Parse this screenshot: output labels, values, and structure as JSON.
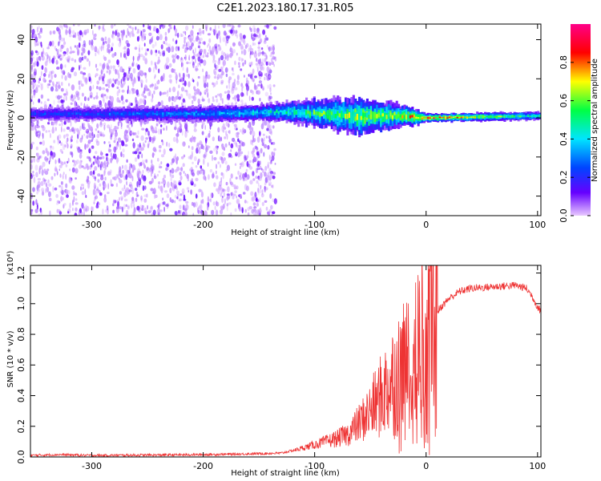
{
  "title": "C2E1.2023.180.17.31.R05",
  "chart_data": [
    {
      "type": "heatmap",
      "xlabel": "Height of straight line (km)",
      "ylabel": "Frequency (Hz)",
      "xlim": [
        -355,
        103
      ],
      "ylim": [
        -50,
        48
      ],
      "x_ticks": [
        -300,
        -200,
        -100,
        0,
        100
      ],
      "y_ticks": [
        -40,
        -20,
        0,
        20,
        40
      ],
      "colorbar": {
        "label": "Normalized spectral amplitude",
        "range": [
          0,
          1
        ],
        "ticks": [
          "0.0",
          "0.2",
          "0.4",
          "0.6",
          "0.8"
        ],
        "colors": [
          "#e8c9ff",
          "#6600ff",
          "#0044ff",
          "#00e5ff",
          "#00ff44",
          "#ffff00",
          "#ff0000",
          "#ff0088"
        ]
      },
      "band": {
        "center_freq": [
          [
            -355,
            2
          ],
          [
            -300,
            2
          ],
          [
            -200,
            2
          ],
          [
            -120,
            3
          ],
          [
            -60,
            1
          ],
          [
            -20,
            1
          ],
          [
            0,
            0
          ],
          [
            100,
            1
          ]
        ],
        "half_width": [
          [
            -355,
            3
          ],
          [
            -140,
            4
          ],
          [
            -60,
            9
          ],
          [
            -10,
            4
          ],
          [
            0,
            2
          ],
          [
            100,
            2
          ]
        ],
        "peak_amplitude": [
          [
            -355,
            0.28
          ],
          [
            -200,
            0.38
          ],
          [
            -120,
            0.55
          ],
          [
            -60,
            0.7
          ],
          [
            -20,
            0.75
          ],
          [
            0,
            0.9
          ],
          [
            100,
            0.55
          ]
        ]
      },
      "noise_region": {
        "x_range": [
          -355,
          -135
        ],
        "freq_range": [
          -50,
          48
        ]
      }
    },
    {
      "type": "line",
      "xlabel": "Height of straight line (km)",
      "ylabel": "SNR (10 * v/v)",
      "y_multiplier": "(x10⁴)",
      "xlim": [
        -355,
        103
      ],
      "ylim": [
        0,
        1.25
      ],
      "x_ticks": [
        -300,
        -200,
        -100,
        0,
        100
      ],
      "y_ticks": [
        "0.0",
        "0.2",
        "0.4",
        "0.6",
        "0.8",
        "1.0",
        "1.2"
      ],
      "series": [
        {
          "color": "#ee3333",
          "points": [
            [
              -355,
              0.01
            ],
            [
              -330,
              0.015
            ],
            [
              -300,
              0.01
            ],
            [
              -250,
              0.012
            ],
            [
              -200,
              0.015
            ],
            [
              -160,
              0.02
            ],
            [
              -130,
              0.025
            ],
            [
              -115,
              0.05
            ],
            [
              -100,
              0.08
            ],
            [
              -90,
              0.1
            ],
            [
              -80,
              0.12
            ],
            [
              -70,
              0.15
            ],
            [
              -60,
              0.22
            ],
            [
              -50,
              0.3
            ],
            [
              -40,
              0.4
            ],
            [
              -30,
              0.5
            ],
            [
              -20,
              0.55
            ],
            [
              -10,
              0.6
            ],
            [
              -5,
              0.7
            ],
            [
              0,
              0.75
            ],
            [
              5,
              0.85
            ],
            [
              10,
              0.95
            ],
            [
              20,
              1.03
            ],
            [
              30,
              1.08
            ],
            [
              40,
              1.1
            ],
            [
              60,
              1.11
            ],
            [
              80,
              1.12
            ],
            [
              90,
              1.1
            ],
            [
              95,
              1.05
            ],
            [
              100,
              0.98
            ],
            [
              103,
              0.95
            ]
          ]
        }
      ]
    }
  ]
}
